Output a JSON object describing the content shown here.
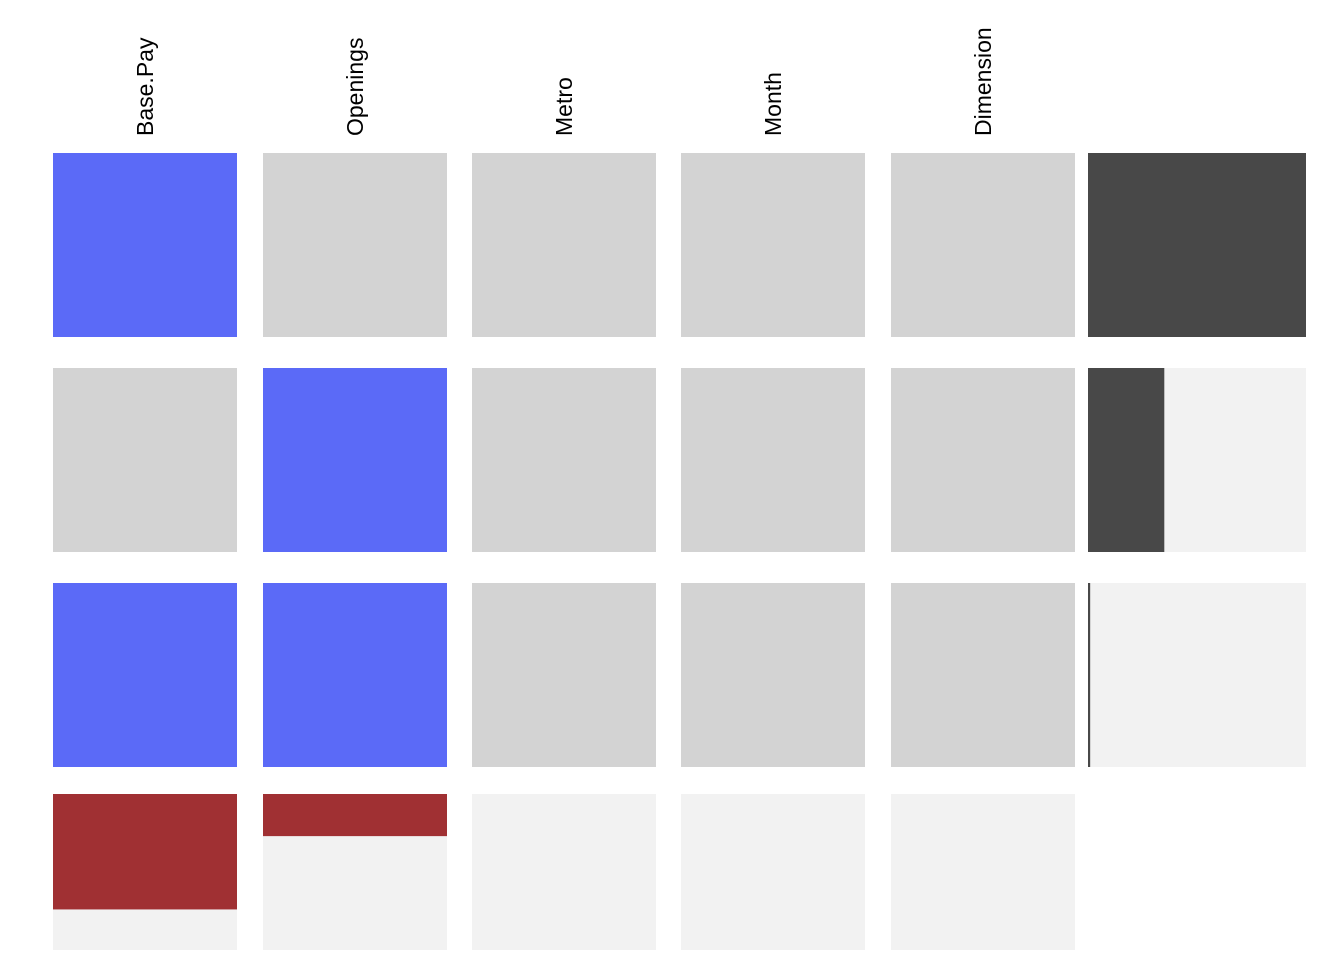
{
  "chart_data": {
    "type": "heatmap",
    "title": "",
    "columns": [
      "Base.Pay",
      "Openings",
      "Metro",
      "Month",
      "Dimension"
    ],
    "rows": [
      {
        "cells": [
          1,
          0,
          0,
          0,
          0
        ],
        "bar_fraction": 1.0
      },
      {
        "cells": [
          0,
          1,
          0,
          0,
          0
        ],
        "bar_fraction": 0.35
      },
      {
        "cells": [
          1,
          1,
          0,
          0,
          0
        ],
        "bar_fraction": 0.01
      }
    ],
    "column_fractions": [
      0.74,
      0.27,
      0.0,
      0.0,
      0.0
    ],
    "legend": "none",
    "grid": false,
    "colors": {
      "present": "#5b6af7",
      "absent": "#d3d3d3",
      "background_cell": "#f2f2f2",
      "bar": "#484848",
      "column_bar": "#a03033"
    }
  }
}
